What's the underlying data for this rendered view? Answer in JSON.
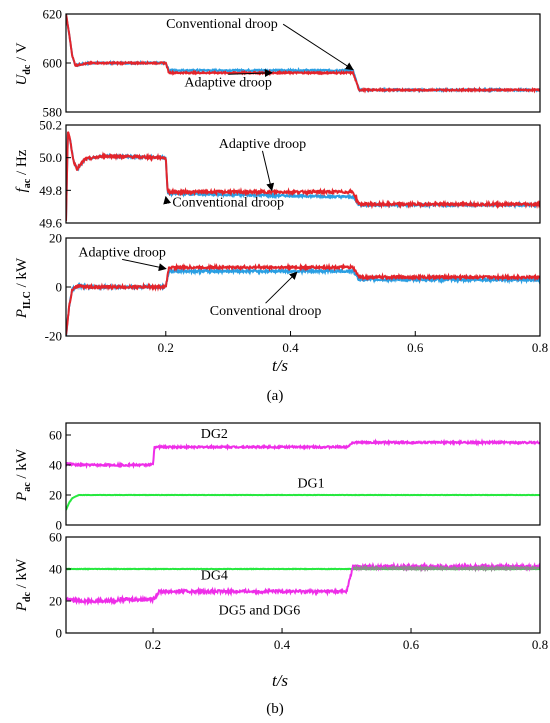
{
  "colors": {
    "conventional": "#2a9fe3",
    "adaptive": "#e3242b",
    "dg1": "#27e83f",
    "dg2": "#ee2ee8",
    "dg4": "#27e83f",
    "dg56": "#ee2ee8",
    "dg56_alt": "#8c8c8c"
  },
  "panel_labels": {
    "a": "(a)",
    "b": "(b)"
  },
  "x_axis_label": "t/s",
  "chart_data": [
    {
      "id": "udc",
      "type": "line",
      "ylabel": "U_dc / V",
      "ylim": [
        580,
        620
      ],
      "yticks": [
        580,
        600,
        620
      ],
      "xlim": [
        0.04,
        0.8
      ],
      "xticks": [],
      "series": [
        {
          "name": "Conventional droop",
          "color_key": "conventional",
          "points": [
            [
              0.04,
              620
            ],
            [
              0.045,
              612
            ],
            [
              0.05,
              603
            ],
            [
              0.055,
              599
            ],
            [
              0.065,
              599.5
            ],
            [
              0.08,
              600
            ],
            [
              0.2,
              600
            ],
            [
              0.205,
              597
            ],
            [
              0.5,
              597
            ],
            [
              0.51,
              589
            ],
            [
              0.8,
              589
            ]
          ],
          "noise": 0.3
        },
        {
          "name": "Adaptive droop",
          "color_key": "adaptive",
          "points": [
            [
              0.04,
              620
            ],
            [
              0.045,
              612
            ],
            [
              0.05,
              603
            ],
            [
              0.055,
              599
            ],
            [
              0.065,
              599.5
            ],
            [
              0.08,
              600
            ],
            [
              0.2,
              600
            ],
            [
              0.205,
              596
            ],
            [
              0.5,
              596
            ],
            [
              0.51,
              589
            ],
            [
              0.8,
              589
            ]
          ],
          "noise": 0.3
        }
      ],
      "annotations": [
        {
          "text": "Conventional droop",
          "x": 0.29,
          "y": 614.2,
          "arrow_to": [
            0.5,
            597.3
          ]
        },
        {
          "text": "Adaptive droop",
          "x": 0.3,
          "y": 590.5,
          "arrow_to": [
            0.37,
            596
          ]
        }
      ]
    },
    {
      "id": "fac",
      "type": "line",
      "ylabel": "f_ac / Hz",
      "ylim": [
        49.6,
        50.2
      ],
      "yticks": [
        49.6,
        49.8,
        50.0,
        50.2
      ],
      "ytick_labels": [
        "49.6",
        "49.8",
        "50.0",
        "50.2"
      ],
      "xlim": [
        0.04,
        0.8
      ],
      "xticks": [],
      "series": [
        {
          "name": "Conventional droop",
          "color_key": "conventional",
          "points": [
            [
              0.04,
              49.62
            ],
            [
              0.043,
              50.16
            ],
            [
              0.047,
              50.1
            ],
            [
              0.052,
              49.98
            ],
            [
              0.058,
              49.93
            ],
            [
              0.07,
              49.99
            ],
            [
              0.1,
              50.01
            ],
            [
              0.2,
              50.0
            ],
            [
              0.203,
              49.78
            ],
            [
              0.5,
              49.76
            ],
            [
              0.51,
              49.71
            ],
            [
              0.8,
              49.71
            ]
          ],
          "noise": 0.006
        },
        {
          "name": "Adaptive droop",
          "color_key": "adaptive",
          "points": [
            [
              0.04,
              49.62
            ],
            [
              0.043,
              50.16
            ],
            [
              0.047,
              50.1
            ],
            [
              0.052,
              49.98
            ],
            [
              0.058,
              49.93
            ],
            [
              0.07,
              49.99
            ],
            [
              0.1,
              50.01
            ],
            [
              0.2,
              50.0
            ],
            [
              0.203,
              49.79
            ],
            [
              0.5,
              49.79
            ],
            [
              0.51,
              49.715
            ],
            [
              0.8,
              49.715
            ]
          ],
          "noise": 0.008
        }
      ],
      "annotations": [
        {
          "text": "Adaptive droop",
          "x": 0.355,
          "y": 50.06,
          "arrow_to": [
            0.37,
            49.8
          ]
        },
        {
          "text": "Conventional droop",
          "x": 0.3,
          "y": 49.7,
          "arrow_to": [
            0.2,
            49.76
          ]
        }
      ]
    },
    {
      "id": "pilc",
      "type": "line",
      "ylabel": "P_ILC / kW",
      "ylim": [
        -20,
        20
      ],
      "yticks": [
        -20,
        0,
        20
      ],
      "xlim": [
        0.04,
        0.8
      ],
      "xticks": [
        0.2,
        0.4,
        0.6,
        0.8
      ],
      "xtick_labels": [
        "0.2",
        "0.4",
        "0.6",
        "0.8"
      ],
      "series": [
        {
          "name": "Conventional droop",
          "color_key": "conventional",
          "points": [
            [
              0.04,
              -20
            ],
            [
              0.045,
              -8
            ],
            [
              0.05,
              -1
            ],
            [
              0.06,
              0.5
            ],
            [
              0.08,
              0
            ],
            [
              0.2,
              0
            ],
            [
              0.205,
              6.5
            ],
            [
              0.5,
              6.5
            ],
            [
              0.51,
              3
            ],
            [
              0.8,
              3
            ]
          ],
          "noise": 0.5
        },
        {
          "name": "Adaptive droop",
          "color_key": "adaptive",
          "points": [
            [
              0.04,
              -20
            ],
            [
              0.045,
              -8
            ],
            [
              0.05,
              -1
            ],
            [
              0.06,
              0.5
            ],
            [
              0.08,
              0
            ],
            [
              0.2,
              0
            ],
            [
              0.205,
              8
            ],
            [
              0.5,
              8
            ],
            [
              0.51,
              4
            ],
            [
              0.8,
              4
            ]
          ],
          "noise": 0.5
        }
      ],
      "annotations": [
        {
          "text": "Adaptive droop",
          "x": 0.13,
          "y": 12.5,
          "arrow_to": [
            0.2,
            7.5
          ]
        },
        {
          "text": "Conventional droop",
          "x": 0.36,
          "y": -11.5,
          "arrow_to": [
            0.41,
            6
          ]
        }
      ]
    },
    {
      "id": "pac",
      "type": "line",
      "ylabel": "P_ac / kW",
      "ylim": [
        0,
        68
      ],
      "yticks": [
        0,
        20,
        40,
        60
      ],
      "xlim": [
        0.065,
        0.8
      ],
      "xticks": [],
      "series": [
        {
          "name": "DG2",
          "color_key": "dg2",
          "points": [
            [
              0.065,
              41
            ],
            [
              0.08,
              40
            ],
            [
              0.19,
              40
            ],
            [
              0.2,
              40.5
            ],
            [
              0.202,
              52
            ],
            [
              0.5,
              52
            ],
            [
              0.51,
              55
            ],
            [
              0.8,
              55
            ]
          ],
          "noise": 0.6
        },
        {
          "name": "DG1",
          "color_key": "dg1",
          "points": [
            [
              0.065,
              10
            ],
            [
              0.07,
              15
            ],
            [
              0.075,
              18
            ],
            [
              0.085,
              20
            ],
            [
              0.8,
              20
            ]
          ],
          "noise": 0.1
        }
      ],
      "annotations": [
        {
          "text": "DG2",
          "x": 0.295,
          "y": 58,
          "arrow_to": null
        },
        {
          "text": "DG1",
          "x": 0.445,
          "y": 25,
          "arrow_to": null
        }
      ]
    },
    {
      "id": "pdc",
      "type": "line",
      "ylabel": "P_dc / kW",
      "ylim": [
        0,
        60
      ],
      "yticks": [
        0,
        20,
        40,
        60
      ],
      "xlim": [
        0.065,
        0.8
      ],
      "xticks": [
        0.2,
        0.4,
        0.6,
        0.8
      ],
      "xtick_labels": [
        "0.2",
        "0.4",
        "0.6",
        "0.8"
      ],
      "series": [
        {
          "name": "DG4",
          "color_key": "dg4",
          "points": [
            [
              0.065,
              40
            ],
            [
              0.08,
              40
            ],
            [
              0.8,
              40
            ]
          ],
          "noise": 0.15
        },
        {
          "name": "DG5 and DG6",
          "color_key": "dg56",
          "points": [
            [
              0.065,
              21.5
            ],
            [
              0.08,
              20
            ],
            [
              0.14,
              20
            ],
            [
              0.15,
              21
            ],
            [
              0.2,
              21
            ],
            [
              0.21,
              26
            ],
            [
              0.5,
              26
            ],
            [
              0.51,
              41.5
            ],
            [
              0.8,
              41.5
            ]
          ],
          "noise": 0.9
        },
        {
          "name": "DG5 and DG6",
          "color_key": "dg56_alt",
          "points": [
            [
              0.51,
              40.5
            ],
            [
              0.8,
              40.5
            ]
          ],
          "noise": 0.6
        }
      ],
      "annotations": [
        {
          "text": "DG4",
          "x": 0.295,
          "y": 33.5,
          "arrow_to": null
        },
        {
          "text": "DG5 and DG6",
          "x": 0.365,
          "y": 11.5,
          "arrow_to": null
        }
      ]
    }
  ]
}
